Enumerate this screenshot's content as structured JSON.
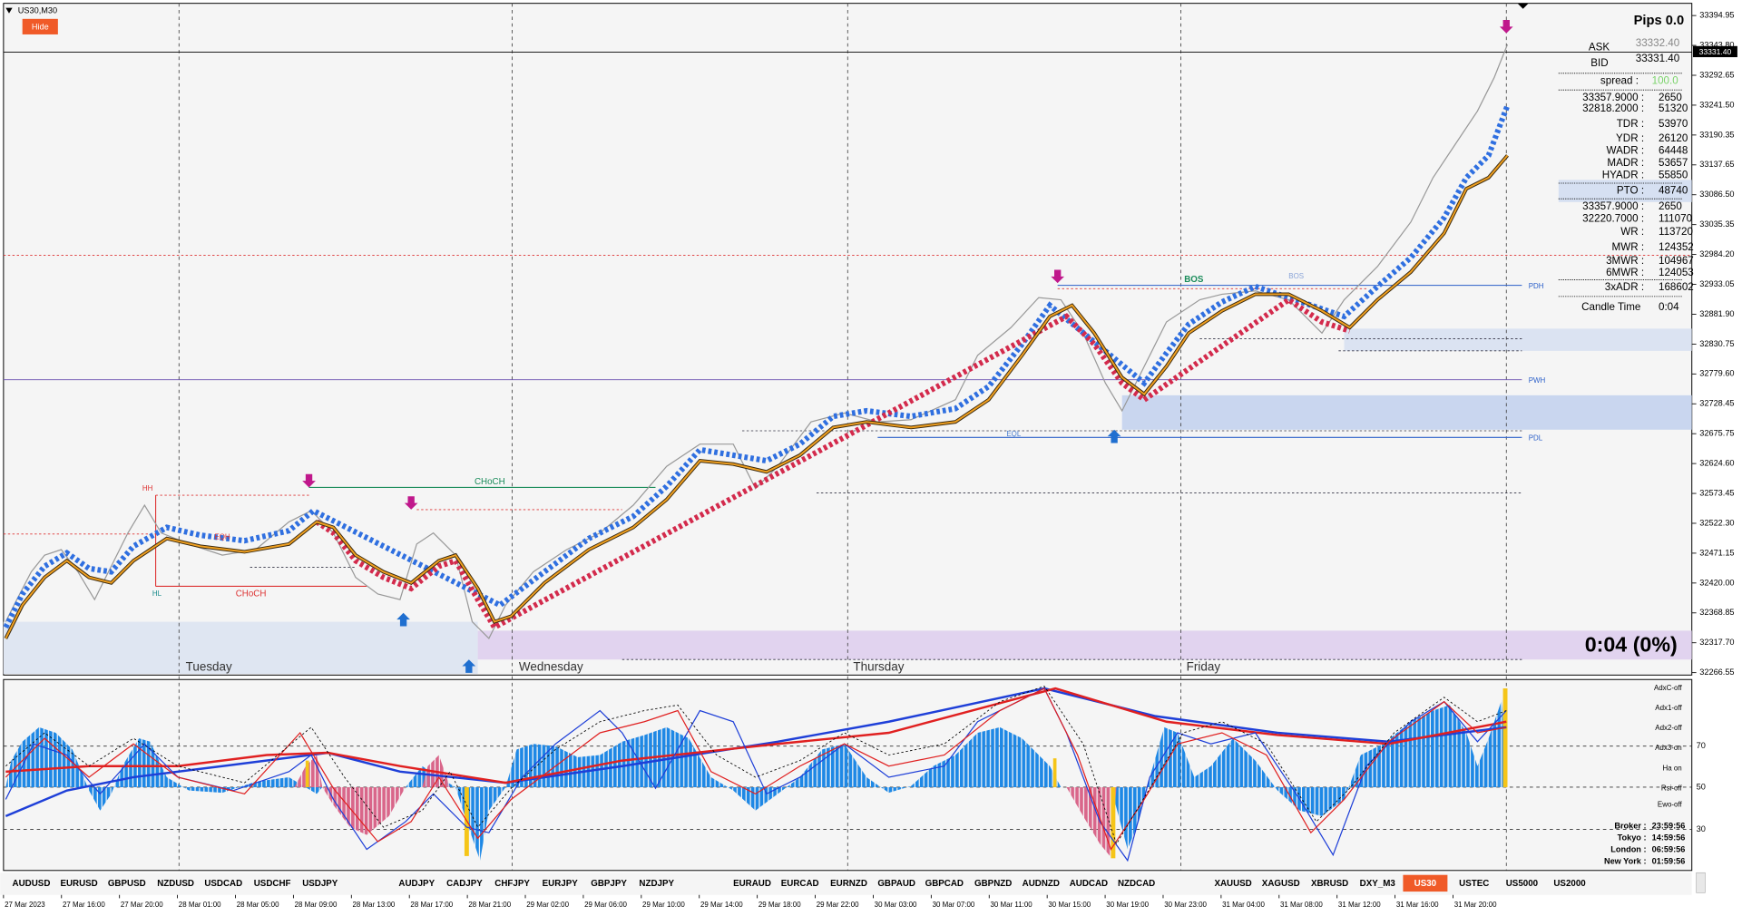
{
  "window": {
    "title": "US30,M30",
    "hide_button": "Hide"
  },
  "price_axis": {
    "labels": [
      "33394.95",
      "33343.80",
      "33292.65",
      "33241.50",
      "33190.35",
      "33137.65",
      "33086.50",
      "33035.35",
      "32984.20",
      "32933.05",
      "32881.90",
      "32830.75",
      "32779.60",
      "32728.45",
      "32675.75",
      "32624.60",
      "32573.45",
      "32522.30",
      "32471.15",
      "32420.00",
      "32368.85",
      "32317.70",
      "32266.55"
    ],
    "current_price": "33331.40"
  },
  "info_panel": {
    "pips": "Pips 0.0",
    "ask_label": "ASK",
    "ask": "33332.40",
    "bid_label": "BID",
    "bid": "33331.40",
    "spread_label": "spread :",
    "spread": "100.0",
    "rows": [
      [
        "33357.9000 :",
        "2650"
      ],
      [
        "32818.2000 :",
        "51320"
      ],
      [
        "TDR :",
        "53970"
      ],
      [
        "YDR :",
        "26120"
      ],
      [
        "WADR :",
        "64448"
      ],
      [
        "MADR :",
        "53657"
      ],
      [
        "HYADR :",
        "55850"
      ],
      [
        "PTO :",
        "48740"
      ],
      [
        "33357.9000 :",
        "2650"
      ],
      [
        "32220.7000 :",
        "111070"
      ],
      [
        "WR :",
        "113720"
      ],
      [
        "MWR :",
        "124352"
      ],
      [
        "3MWR :",
        "104967"
      ],
      [
        "6MWR :",
        "124053"
      ],
      [
        "3xADR :",
        "168602"
      ],
      [
        "Candle Time",
        "0:04"
      ]
    ]
  },
  "candle_timer": "0:04 (0%)",
  "days": [
    "Tuesday",
    "Wednesday",
    "Thursday",
    "Friday"
  ],
  "levels": [
    "PDH",
    "PWH",
    "PDL"
  ],
  "annotations": {
    "hh": "HH",
    "hl": "HL",
    "choch_red": "CHoCH",
    "choch_green": "CHoCH",
    "bos_green": "BOS",
    "bos_small": "BOS",
    "eqh": "EQH",
    "eql": "EQL"
  },
  "indicator": {
    "options": [
      "AdxC-off",
      "Adx1-off",
      "Adx2-off",
      "Adx3-on",
      "Ha on",
      "Rsi-off",
      "Ewo-off"
    ],
    "axis": [
      "70",
      "50",
      "30"
    ],
    "sessions": [
      [
        "Broker :",
        "23:59:56"
      ],
      [
        "Tokyo :",
        "14:59:56"
      ],
      [
        "London :",
        "06:59:56"
      ],
      [
        "New York :",
        "01:59:56"
      ]
    ]
  },
  "symbols": [
    "AUDUSD",
    "EURUSD",
    "GBPUSD",
    "NZDUSD",
    "USDCAD",
    "USDCHF",
    "USDJPY",
    "AUDJPY",
    "CADJPY",
    "CHFJPY",
    "EURJPY",
    "GBPJPY",
    "NZDJPY",
    "EURAUD",
    "EURCAD",
    "EURNZD",
    "GBPAUD",
    "GBPCAD",
    "GBPNZD",
    "AUDNZD",
    "AUDCAD",
    "NZDCAD",
    "XAUUSD",
    "XAGUSD",
    "XBRUSD",
    "DXY_M3",
    "US30",
    "USTEC",
    "US5000",
    "US2000"
  ],
  "active_symbol": "US30",
  "time_axis": [
    "27 Mar 2023",
    "27 Mar 16:00",
    "27 Mar 20:00",
    "28 Mar 01:00",
    "28 Mar 05:00",
    "28 Mar 09:00",
    "28 Mar 13:00",
    "28 Mar 17:00",
    "28 Mar 21:00",
    "29 Mar 02:00",
    "29 Mar 06:00",
    "29 Mar 10:00",
    "29 Mar 14:00",
    "29 Mar 18:00",
    "29 Mar 22:00",
    "30 Mar 03:00",
    "30 Mar 07:00",
    "30 Mar 11:00",
    "30 Mar 15:00",
    "30 Mar 19:00",
    "30 Mar 23:00",
    "31 Mar 04:00",
    "31 Mar 08:00",
    "31 Mar 12:00",
    "31 Mar 16:00",
    "31 Mar 20:00"
  ]
}
